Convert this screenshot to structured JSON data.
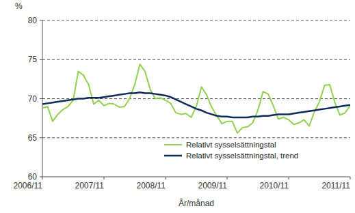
{
  "chart_data": {
    "type": "line",
    "y_label": "%",
    "x_label": "År/månad",
    "categories": [
      "2006/11",
      null,
      null,
      null,
      null,
      null,
      null,
      null,
      null,
      null,
      null,
      null,
      "2007/11",
      null,
      null,
      null,
      null,
      null,
      null,
      null,
      null,
      null,
      null,
      null,
      "2008/11",
      null,
      null,
      null,
      null,
      null,
      null,
      null,
      null,
      null,
      null,
      null,
      "2009/11",
      null,
      null,
      null,
      null,
      null,
      null,
      null,
      null,
      null,
      null,
      null,
      "2010/11",
      null,
      null,
      null,
      null,
      null,
      null,
      null,
      null,
      null,
      null,
      null,
      "2011/11"
    ],
    "series": [
      {
        "name": "Relativt sysselsättningstal",
        "color": "#92d050",
        "values": [
          68.8,
          69.0,
          67.1,
          68.0,
          68.6,
          69.0,
          69.8,
          73.5,
          73.0,
          71.8,
          69.3,
          69.8,
          69.1,
          69.4,
          69.3,
          68.9,
          69.0,
          70.0,
          71.8,
          74.4,
          73.5,
          71.2,
          70.0,
          70.1,
          69.8,
          69.4,
          68.2,
          68.0,
          68.1,
          67.6,
          69.0,
          71.5,
          70.5,
          68.9,
          67.8,
          66.8,
          67.1,
          67.1,
          65.6,
          66.3,
          66.4,
          66.9,
          68.5,
          70.9,
          70.6,
          69.1,
          67.4,
          67.6,
          67.3,
          66.7,
          66.9,
          67.3,
          66.5,
          68.3,
          69.6,
          71.7,
          71.8,
          69.5,
          67.9,
          68.2,
          69.1
        ]
      },
      {
        "name": "Relativt sysselsättningstal, trend",
        "color": "#0d2a5e",
        "values": [
          69.3,
          69.4,
          69.5,
          69.6,
          69.7,
          69.8,
          69.9,
          70.0,
          70.0,
          70.1,
          70.1,
          70.1,
          70.2,
          70.3,
          70.4,
          70.5,
          70.6,
          70.7,
          70.7,
          70.8,
          70.7,
          70.7,
          70.6,
          70.5,
          70.4,
          70.2,
          69.9,
          69.6,
          69.3,
          69.0,
          68.7,
          68.5,
          68.2,
          68.0,
          67.8,
          67.7,
          67.7,
          67.6,
          67.6,
          67.6,
          67.6,
          67.7,
          67.7,
          67.8,
          67.8,
          67.9,
          68.0,
          68.0,
          68.0,
          68.1,
          68.2,
          68.3,
          68.4,
          68.5,
          68.6,
          68.7,
          68.8,
          68.9,
          69.0,
          69.1,
          69.2
        ]
      }
    ],
    "ylim": [
      60,
      80
    ],
    "yticks": [
      60,
      65,
      70,
      75,
      80
    ],
    "grid": true,
    "legend": "lower right"
  }
}
